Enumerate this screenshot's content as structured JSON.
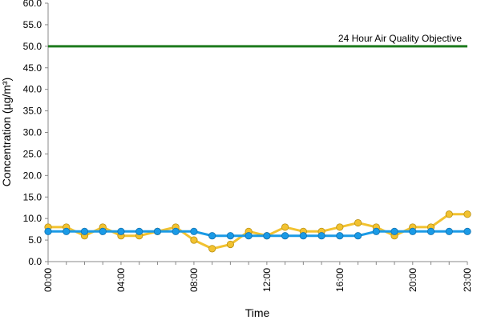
{
  "chart_data": {
    "type": "line",
    "title": "",
    "xlabel": "Time",
    "ylabel": "Concentration (µg/m³)",
    "ylim": [
      0,
      60
    ],
    "yticks": [
      "0.0",
      "5.0",
      "10.0",
      "15.0",
      "20.0",
      "25.0",
      "30.0",
      "35.0",
      "40.0",
      "45.0",
      "50.0",
      "55.0",
      "60.0"
    ],
    "x": [
      "00:00",
      "01:00",
      "02:00",
      "03:00",
      "04:00",
      "05:00",
      "06:00",
      "07:00",
      "08:00",
      "09:00",
      "10:00",
      "11:00",
      "12:00",
      "13:00",
      "14:00",
      "15:00",
      "16:00",
      "17:00",
      "18:00",
      "19:00",
      "20:00",
      "21:00",
      "22:00",
      "23:00"
    ],
    "xtick_labels": [
      "00:00",
      "04:00",
      "08:00",
      "12:00",
      "16:00",
      "20:00",
      "23:00"
    ],
    "grid": false,
    "legend": "none",
    "series": [
      {
        "color": "#f2c230",
        "values": [
          8,
          8,
          6,
          8,
          6,
          6,
          7,
          8,
          5,
          3,
          4,
          7,
          6,
          8,
          7,
          7,
          8,
          9,
          8,
          6,
          8,
          8,
          11,
          11
        ]
      },
      {
        "color": "#1a9ae6",
        "values": [
          7,
          7,
          7,
          7,
          7,
          7,
          7,
          7,
          7,
          6,
          6,
          6,
          6,
          6,
          6,
          6,
          6,
          6,
          7,
          7,
          7,
          7,
          7,
          7
        ]
      }
    ],
    "reference_line": {
      "value": 50,
      "label": "24 Hour Air Quality Objective",
      "color": "#1e7b1e"
    }
  }
}
